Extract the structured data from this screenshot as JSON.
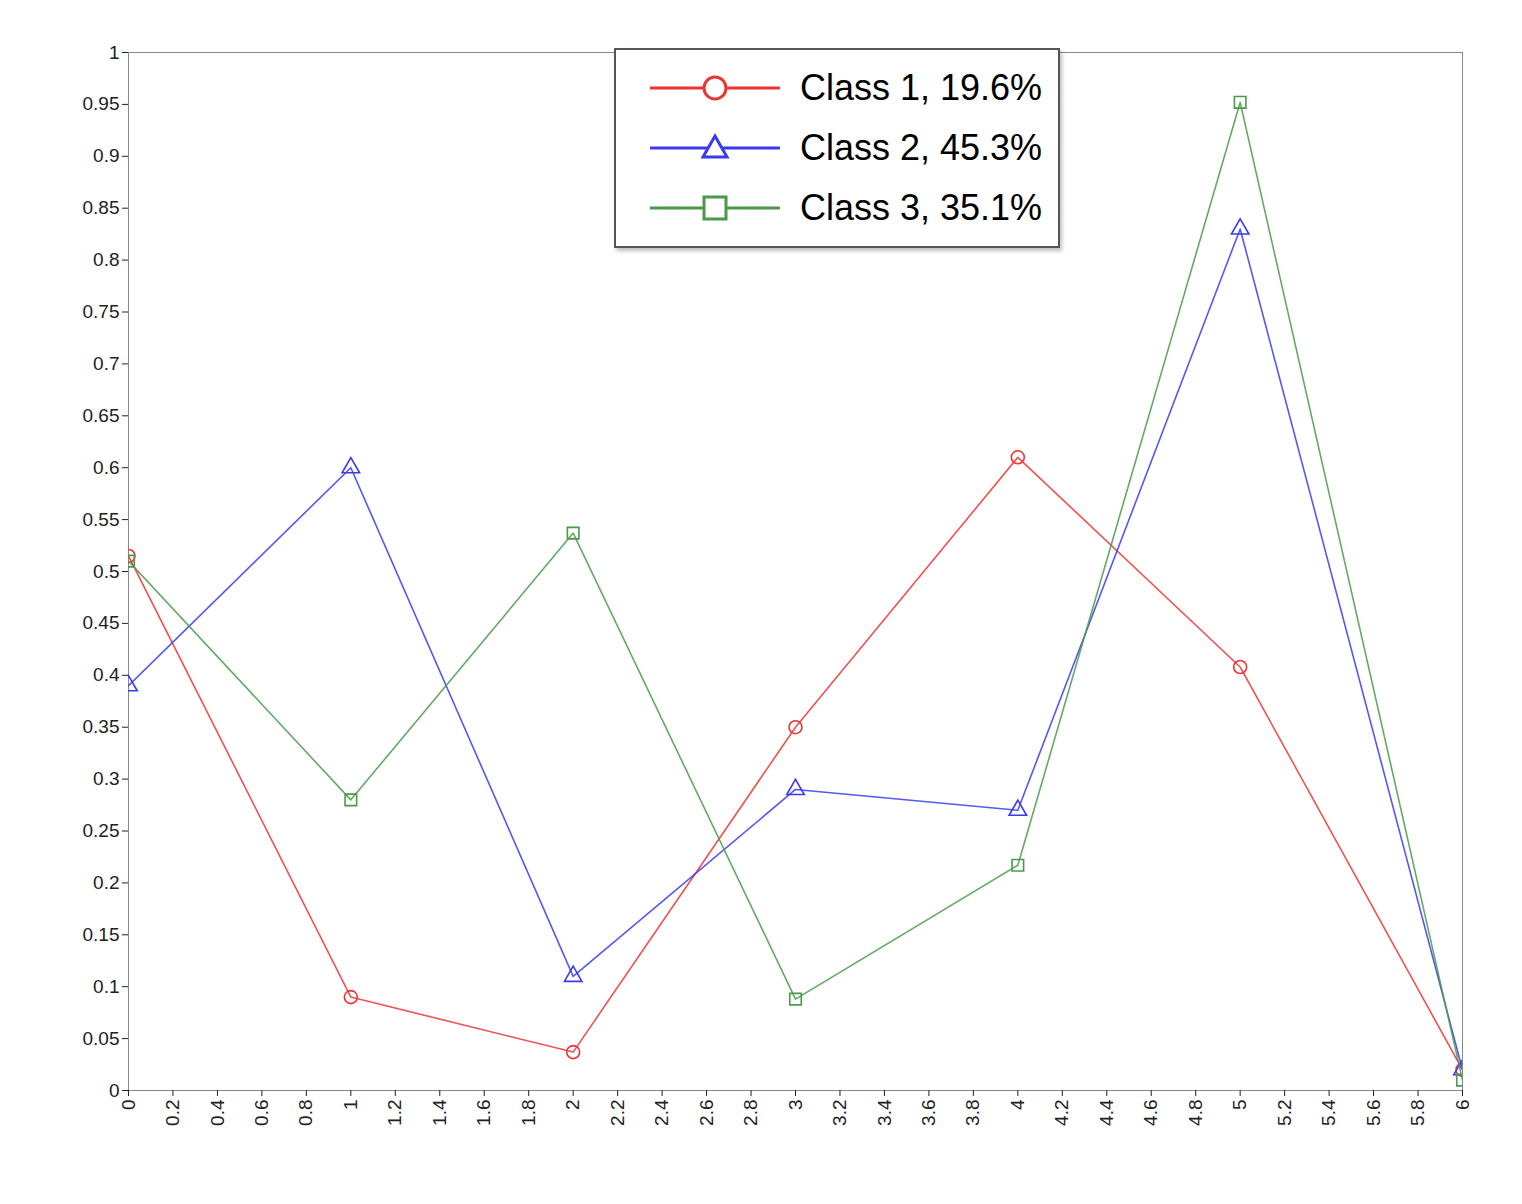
{
  "chart_data": {
    "type": "line",
    "x": [
      0,
      1,
      2,
      3,
      4,
      5,
      6
    ],
    "series": [
      {
        "name": "Class 1, 19.6%",
        "color": "#ee3333",
        "marker": "circle",
        "values": [
          0.515,
          0.09,
          0.037,
          0.35,
          0.61,
          0.408,
          0.02
        ]
      },
      {
        "name": "Class 2, 45.3%",
        "color": "#3a3af0",
        "marker": "triangle",
        "values": [
          0.39,
          0.6,
          0.11,
          0.29,
          0.27,
          0.83,
          0.02
        ]
      },
      {
        "name": "Class 3, 35.1%",
        "color": "#4a9a4a",
        "marker": "square",
        "values": [
          0.51,
          0.28,
          0.537,
          0.088,
          0.217,
          0.952,
          0.01
        ]
      }
    ],
    "xlim": [
      0,
      6
    ],
    "xticks": [
      0,
      0.2,
      0.4,
      0.6,
      0.8,
      1,
      1.2,
      1.4,
      1.6,
      1.8,
      2,
      2.2,
      2.4,
      2.6,
      2.8,
      3,
      3.2,
      3.4,
      3.6,
      3.8,
      4,
      4.2,
      4.4,
      4.6,
      4.8,
      5,
      5.2,
      5.4,
      5.6,
      5.8,
      6
    ],
    "ylim": [
      0,
      1
    ],
    "yticks": [
      0,
      0.05,
      0.1,
      0.15,
      0.2,
      0.25,
      0.3,
      0.35,
      0.4,
      0.45,
      0.5,
      0.55,
      0.6,
      0.65,
      0.7,
      0.75,
      0.8,
      0.85,
      0.9,
      0.95,
      1
    ],
    "grid": false,
    "legend": "top"
  }
}
